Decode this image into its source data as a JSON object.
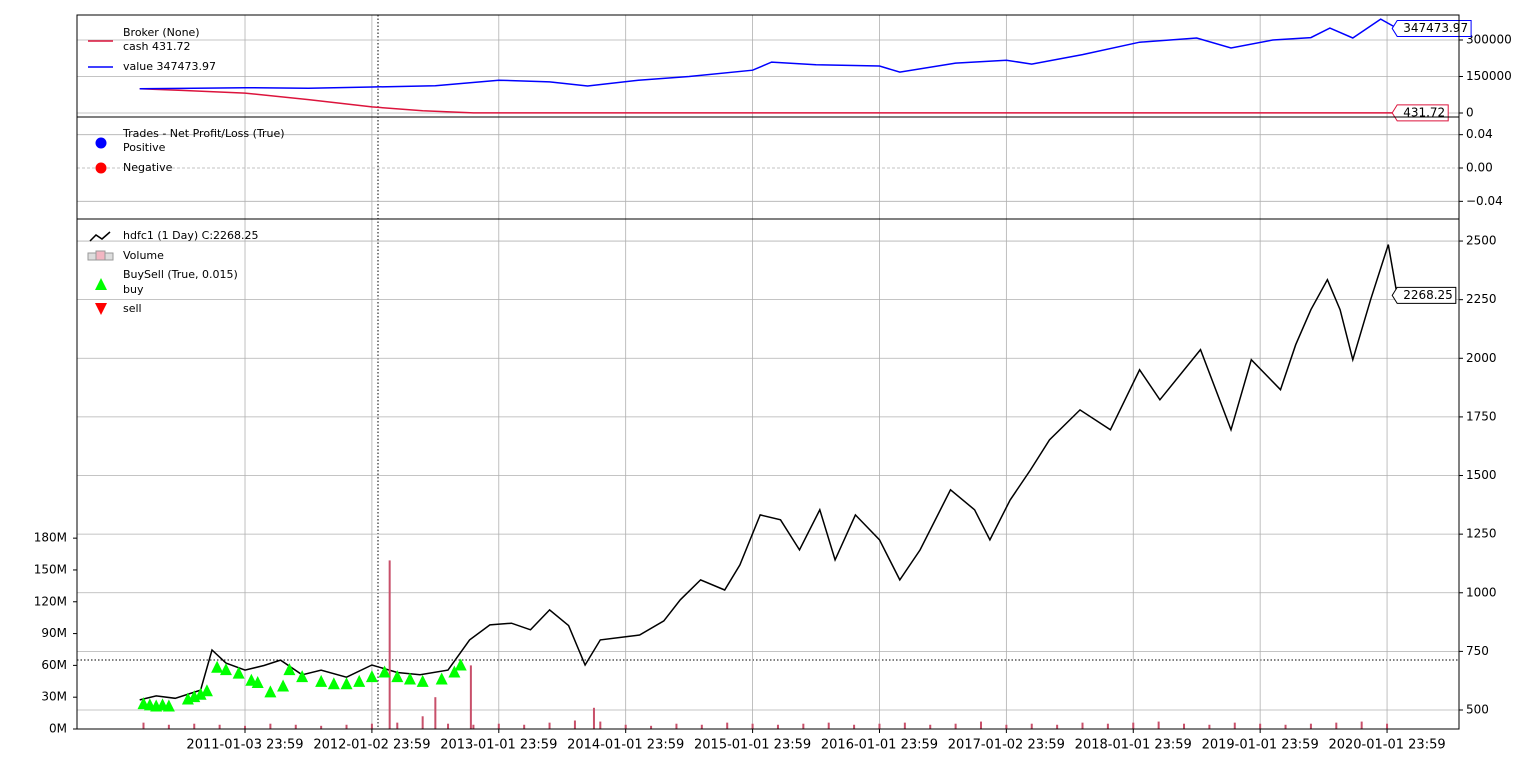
{
  "chart_data": [
    {
      "type": "line",
      "title": "Broker (None)",
      "series": [
        {
          "name": "cash 431.72",
          "color": "#dc143c",
          "x": [
            2010.17,
            2010.5,
            2011.0,
            2011.5,
            2012.0,
            2012.4,
            2012.8,
            2013.5,
            2015.0,
            2017.0,
            2019.0,
            2020.08
          ],
          "values": [
            100000,
            93000,
            82000,
            55000,
            25000,
            9000,
            431.72,
            431.72,
            431.72,
            431.72,
            431.72,
            431.72
          ]
        },
        {
          "name": "value 347473.97",
          "color": "#0000ff",
          "x": [
            2010.17,
            2010.5,
            2011.0,
            2011.5,
            2012.0,
            2012.5,
            2013.0,
            2013.4,
            2013.7,
            2014.1,
            2014.5,
            2015.0,
            2015.15,
            2015.5,
            2016.0,
            2016.16,
            2016.6,
            2017.0,
            2017.2,
            2017.6,
            2018.05,
            2018.5,
            2018.77,
            2019.1,
            2019.4,
            2019.55,
            2019.73,
            2019.95,
            2020.08
          ],
          "values": [
            100000,
            101000,
            104000,
            102000,
            107000,
            112000,
            135000,
            128000,
            111000,
            135000,
            150000,
            176000,
            209000,
            198000,
            193000,
            168000,
            205000,
            217000,
            201000,
            240000,
            291000,
            308000,
            267000,
            300000,
            310000,
            349000,
            308000,
            386000,
            347473.97
          ]
        }
      ],
      "xlim": [
        2009.676,
        2020.567
      ],
      "ylim": [
        -16400,
        402700
      ],
      "yticks": [
        0,
        150000,
        300000
      ],
      "grid": true
    },
    {
      "type": "scatter",
      "title": "Trades - Net Profit/Loss (True)",
      "series": [
        {
          "name": "Positive",
          "color": "#0000ff",
          "x": [],
          "values": []
        },
        {
          "name": "Negative",
          "color": "#ff0000",
          "x": [],
          "values": []
        }
      ],
      "xlim": [
        2009.676,
        2020.567
      ],
      "ylim": [
        -0.0612,
        0.0612
      ],
      "yticks": [
        0.04,
        {
          "value": 0,
          "label": "0.00"
        },
        {
          "value": -0.04,
          "label": "−0.04"
        }
      ],
      "grid": true
    },
    {
      "type": "line",
      "series": [
        {
          "name": "hdfc1 (1 Day) C:2268.25",
          "color": "#000000",
          "x": [
            2010.17,
            2010.3,
            2010.45,
            2010.65,
            2010.74,
            2010.85,
            2011.0,
            2011.15,
            2011.28,
            2011.45,
            2011.6,
            2011.8,
            2012.0,
            2012.2,
            2012.38,
            2012.6,
            2012.77,
            2012.93,
            2013.1,
            2013.25,
            2013.4,
            2013.55,
            2013.68,
            2013.8,
            2014.11,
            2014.3,
            2014.43,
            2014.59,
            2014.78,
            2014.9,
            2015.06,
            2015.22,
            2015.37,
            2015.53,
            2015.65,
            2015.81,
            2016.0,
            2016.16,
            2016.32,
            2016.56,
            2016.75,
            2016.87,
            2017.03,
            2017.19,
            2017.34,
            2017.58,
            2017.82,
            2018.05,
            2018.21,
            2018.53,
            2018.77,
            2018.93,
            2019.16,
            2019.28,
            2019.4,
            2019.53,
            2019.63,
            2019.73,
            2019.87,
            2020.01,
            2020.08
          ],
          "values": [
            543,
            560,
            550,
            585,
            756,
            700,
            670,
            690,
            713,
            650,
            670,
            640,
            692,
            660,
            650,
            670,
            799,
            863,
            870,
            842,
            927,
            860,
            692,
            799,
            820,
            880,
            970,
            1055,
            1012,
            1119,
            1332,
            1311,
            1183,
            1354,
            1140,
            1332,
            1226,
            1055,
            1183,
            1439,
            1354,
            1226,
            1396,
            1524,
            1652,
            1780,
            1695,
            1951,
            1823,
            2037,
            1695,
            1994,
            1866,
            2058,
            2207,
            2335,
            2207,
            1994,
            2250,
            2485,
            2268.25
          ]
        },
        {
          "name": "Volume",
          "type": "bar",
          "axis": "y2",
          "color": "#c8506a",
          "x": [
            2010.2,
            2010.4,
            2010.6,
            2010.8,
            2011.0,
            2011.2,
            2011.4,
            2011.6,
            2011.8,
            2012.0,
            2012.14,
            2012.2,
            2012.4,
            2012.5,
            2012.6,
            2012.78,
            2012.8,
            2013.0,
            2013.2,
            2013.4,
            2013.6,
            2013.75,
            2013.8,
            2014.0,
            2014.2,
            2014.4,
            2014.6,
            2014.8,
            2015.0,
            2015.2,
            2015.4,
            2015.6,
            2015.8,
            2016.0,
            2016.2,
            2016.4,
            2016.6,
            2016.8,
            2017.0,
            2017.2,
            2017.4,
            2017.6,
            2017.8,
            2018.0,
            2018.2,
            2018.4,
            2018.6,
            2018.8,
            2019.0,
            2019.2,
            2019.4,
            2019.6,
            2019.8,
            2020.0
          ],
          "values": [
            6000000,
            4000000,
            5000000,
            4000000,
            3000000,
            5000000,
            4000000,
            3000000,
            4000000,
            5000000,
            159000000,
            6000000,
            12000000,
            30000000,
            5000000,
            60000000,
            4000000,
            5000000,
            4000000,
            6000000,
            8000000,
            20000000,
            7000000,
            4000000,
            3000000,
            5000000,
            4000000,
            6000000,
            5000000,
            4000000,
            5000000,
            6000000,
            4000000,
            5000000,
            6000000,
            4000000,
            5000000,
            7000000,
            4000000,
            5000000,
            4000000,
            6000000,
            5000000,
            6000000,
            7000000,
            5000000,
            4000000,
            6000000,
            5000000,
            4000000,
            5000000,
            6000000,
            7000000,
            5000000
          ]
        }
      ],
      "buysell": {
        "title": "BuySell (True, 0.015)",
        "series": [
          {
            "name": "buy",
            "color": "#00ff00",
            "x": [
              2010.2,
              2010.25,
              2010.3,
              2010.35,
              2010.4,
              2010.55,
              2010.6,
              2010.65,
              2010.7,
              2010.78,
              2010.85,
              2010.95,
              2011.05,
              2011.1,
              2011.2,
              2011.3,
              2011.35,
              2011.45,
              2011.6,
              2011.7,
              2011.8,
              2011.9,
              2012.0,
              2012.1,
              2012.2,
              2012.3,
              2012.4,
              2012.55,
              2012.65,
              2012.7
            ],
            "values": [
              525,
              520,
              515,
              520,
              515,
              545,
              555,
              565,
              580,
              680,
              670,
              655,
              625,
              615,
              575,
              600,
              670,
              640,
              620,
              610,
              610,
              620,
              640,
              660,
              640,
              630,
              620,
              630,
              660,
              690
            ]
          },
          {
            "name": "sell",
            "color": "#ff0000",
            "x": [],
            "values": []
          }
        ]
      },
      "xlim": [
        2009.676,
        2020.567
      ],
      "xticks": [
        {
          "value": 2011.0,
          "label": "2011-01-03 23:59"
        },
        {
          "value": 2012.0,
          "label": "2012-01-02 23:59"
        },
        {
          "value": 2013.0,
          "label": "2013-01-01 23:59"
        },
        {
          "value": 2014.0,
          "label": "2014-01-01 23:59"
        },
        {
          "value": 2015.0,
          "label": "2015-01-01 23:59"
        },
        {
          "value": 2016.0,
          "label": "2016-01-01 23:59"
        },
        {
          "value": 2017.0,
          "label": "2017-01-02 23:59"
        },
        {
          "value": 2018.0,
          "label": "2018-01-01 23:59"
        },
        {
          "value": 2019.0,
          "label": "2019-01-01 23:59"
        },
        {
          "value": 2020.0,
          "label": "2020-01-01 23:59"
        }
      ],
      "ylim": [
        419,
        2594
      ],
      "yticks": [
        500,
        750,
        1000,
        1250,
        1500,
        1750,
        2000,
        2250,
        2500
      ],
      "y2lim": [
        0,
        481000000
      ],
      "y2ticks": [
        {
          "value": 0,
          "label": "0M"
        },
        {
          "value": 30000000,
          "label": "30M"
        },
        {
          "value": 60000000,
          "label": "60M"
        },
        {
          "value": 90000000,
          "label": "90M"
        },
        {
          "value": 120000000,
          "label": "120M"
        },
        {
          "value": 150000000,
          "label": "150M"
        },
        {
          "value": 180000000,
          "label": "180M"
        }
      ],
      "grid": true
    }
  ]
}
